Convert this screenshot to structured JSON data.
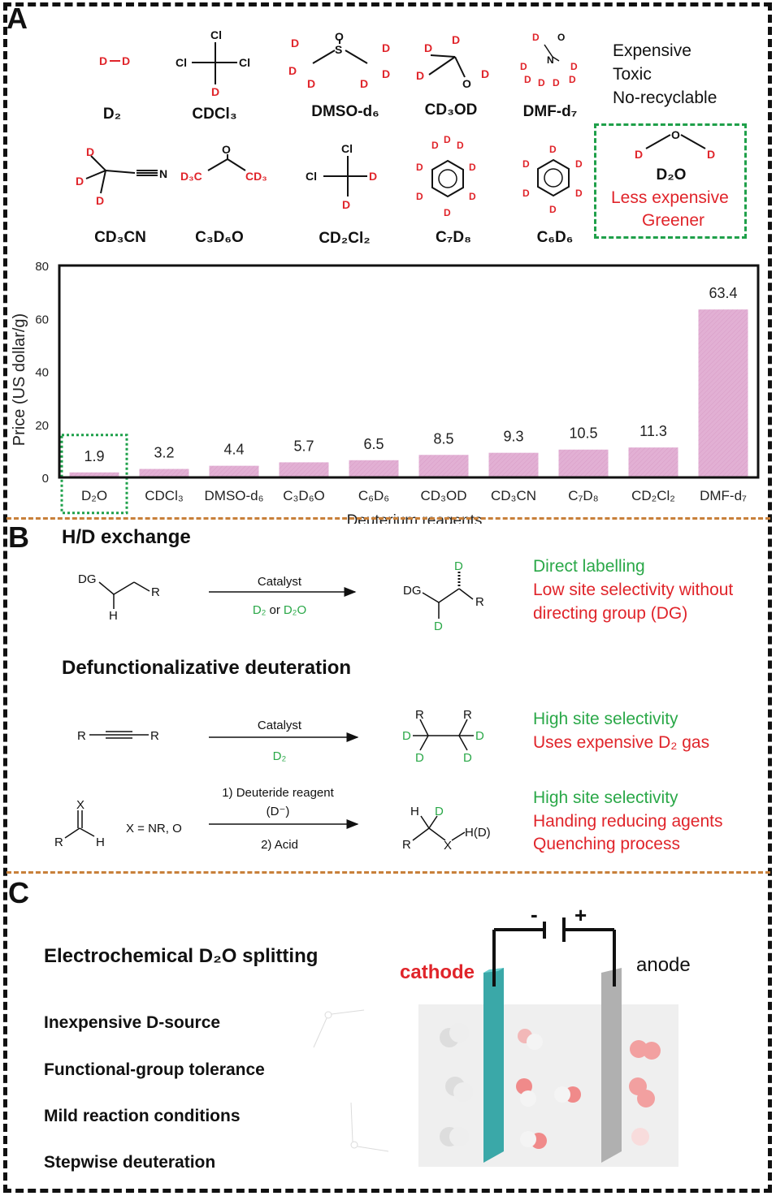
{
  "panel_a": {
    "letter": "A",
    "row1": [
      {
        "name": "D₂",
        "atoms": [
          "D",
          "D"
        ]
      },
      {
        "name": "CDCl₃",
        "atoms": [
          "Cl",
          "Cl",
          "Cl",
          "D"
        ]
      },
      {
        "name": "DMSO-d₆",
        "atoms": [
          "O",
          "S",
          "D",
          "D",
          "D",
          "D",
          "D",
          "D"
        ]
      },
      {
        "name": "CD₃OD",
        "atoms": [
          "D",
          "D",
          "D",
          "O",
          "D"
        ]
      },
      {
        "name": "DMF-d₇",
        "atoms": [
          "D",
          "O",
          "N",
          "D",
          "D",
          "D",
          "D",
          "D",
          "D"
        ]
      }
    ],
    "row2": [
      {
        "name": "CD₃CN",
        "atoms": [
          "D",
          "D",
          "D",
          "N"
        ]
      },
      {
        "name": "C₃D₆O",
        "atoms": [
          "O",
          "D₃C",
          "CD₃"
        ]
      },
      {
        "name": "CD₂Cl₂",
        "atoms": [
          "Cl",
          "Cl",
          "D",
          "D"
        ]
      },
      {
        "name": "C₇D₈",
        "atoms": [
          "D",
          "D",
          "D",
          "D",
          "D",
          "D",
          "D",
          "D"
        ]
      },
      {
        "name": "C₆D₆",
        "atoms": [
          "D",
          "D",
          "D",
          "D",
          "D",
          "D"
        ]
      }
    ],
    "drawbacks": [
      "Expensive",
      "Toxic",
      "No-recyclable"
    ],
    "highlight": {
      "name": "D₂O",
      "atoms": [
        "O",
        "D",
        "D"
      ],
      "lines": [
        "Less expensive",
        "Greener"
      ]
    },
    "colors": {
      "red": "#e0242a",
      "green": "#2aa848",
      "bar": "#e2b0d4",
      "box": "#1fa04a",
      "divider": "#c8803a"
    }
  },
  "chart_data": {
    "type": "bar",
    "categories": [
      "D₂O",
      "CDCl₃",
      "DMSO-d₆",
      "C₃D₆O",
      "C₆D₆",
      "CD₃OD",
      "CD₃CN",
      "C₇D₈",
      "CD₂Cl₂",
      "DMF-d₇"
    ],
    "values": [
      1.9,
      3.2,
      4.4,
      5.7,
      6.5,
      8.5,
      9.3,
      10.5,
      11.3,
      63.4
    ],
    "data_labels": [
      "1.9",
      "3.2",
      "4.4",
      "5.7",
      "6.5",
      "8.5",
      "9.3",
      "10.5",
      "11.3",
      "63.4"
    ],
    "ylabel": "Price (US dollar/g)",
    "xlabel": "Deuterium reagents",
    "ylim": [
      0,
      80
    ],
    "yticks": [
      "0",
      "20",
      "40",
      "60",
      "80"
    ],
    "highlighted_category": "D₂O",
    "grid": false
  },
  "panel_b": {
    "letter": "B",
    "title1": "H/D exchange",
    "r1": {
      "reactant": [
        "DG",
        "R",
        "H"
      ],
      "above": "Catalyst",
      "below_parts": [
        "D₂",
        "or",
        "D₂O"
      ],
      "product": [
        "D",
        "DG",
        "R",
        "D"
      ],
      "notes": [
        {
          "t": "Direct labelling",
          "c": "green"
        },
        {
          "t": "Low site selectivity without",
          "c": "red"
        },
        {
          "t": "directing group (DG)",
          "c": "red"
        }
      ]
    },
    "title2": "Defunctionalizative deuteration",
    "r2": {
      "reactant": [
        "R",
        "R"
      ],
      "above": "Catalyst",
      "below": "D₂",
      "product": [
        "R",
        "R",
        "D",
        "D",
        "D",
        "D"
      ],
      "notes": [
        {
          "t": "High site selectivity",
          "c": "green"
        },
        {
          "t": "Uses expensive D₂ gas",
          "c": "red"
        }
      ]
    },
    "r3": {
      "reactant": [
        "X",
        "R",
        "H"
      ],
      "condition": "X = NR, O",
      "above1": "1) Deuteride reagent",
      "above2": "(D⁻)",
      "below": "2) Acid",
      "product": [
        "H",
        "D",
        "R",
        "X",
        "H(D)"
      ],
      "notes": [
        {
          "t": "High site selectivity",
          "c": "green"
        },
        {
          "t": "Handing reducing agents",
          "c": "red"
        },
        {
          "t": "Quenching process",
          "c": "red"
        }
      ]
    }
  },
  "panel_c": {
    "letter": "C",
    "title": "Electrochemical D₂O splitting",
    "bullets": [
      "Inexpensive D-source",
      "Functional-group tolerance",
      "Mild reaction conditions",
      "Stepwise deuteration"
    ],
    "cathode": "cathode",
    "anode": "anode",
    "minus": "-",
    "plus": "+",
    "colors": {
      "cathode": "#3aa8a8",
      "anode": "#b0b0b0",
      "cell": "#efefef"
    }
  }
}
